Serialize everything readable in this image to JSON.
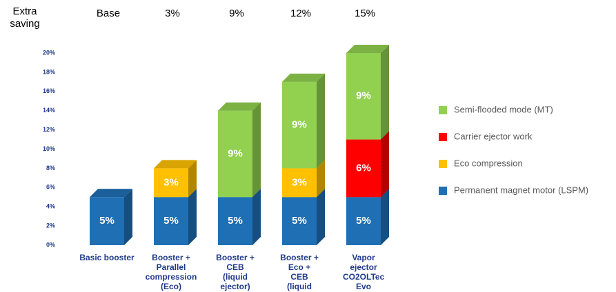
{
  "chart_data": {
    "type": "stacked_bar_3d",
    "header_label": "Extra saving",
    "top_labels": [
      "Base",
      "3%",
      "9%",
      "12%",
      "15%"
    ],
    "categories": [
      "Basic booster",
      "Booster + Parallel compression (Eco)",
      "Booster + CEB (liquid ejector)",
      "Booster + Eco + CEB (liquid ejector)",
      "Vapor ejector CO2OLTec Evo"
    ],
    "series": [
      {
        "name": "Permanent magnet motor (LSPM)",
        "color": "#1f6fb5",
        "values": [
          5,
          5,
          5,
          5,
          5
        ],
        "value_labels": [
          "5%",
          "5%",
          "5%",
          "5%",
          "5%"
        ]
      },
      {
        "name": "Eco compression",
        "color": "#ffc000",
        "values": [
          null,
          3,
          null,
          3,
          null
        ],
        "value_labels": [
          null,
          "3%",
          null,
          "3%",
          null
        ]
      },
      {
        "name": "Carrier ejector work",
        "color": "#ff0000",
        "values": [
          null,
          null,
          null,
          null,
          6
        ],
        "value_labels": [
          null,
          null,
          null,
          null,
          "6%"
        ]
      },
      {
        "name": "Semi-flooded mode (MT)",
        "color": "#92d050",
        "values": [
          null,
          null,
          9,
          9,
          9
        ],
        "value_labels": [
          null,
          null,
          "9%",
          "9%",
          "9%"
        ]
      }
    ],
    "ylim": [
      0,
      20
    ],
    "yticks": [
      {
        "value": 0,
        "label": "0%"
      },
      {
        "value": 2,
        "label": "2%"
      },
      {
        "value": 4,
        "label": "4%"
      },
      {
        "value": 6,
        "label": "6%"
      },
      {
        "value": 8,
        "label": "8%"
      },
      {
        "value": 10,
        "label": "10%"
      },
      {
        "value": 12,
        "label": "12%"
      },
      {
        "value": 14,
        "label": "14%"
      },
      {
        "value": 16,
        "label": "16%"
      },
      {
        "value": 18,
        "label": "18%"
      },
      {
        "value": 20,
        "label": "20%"
      }
    ]
  }
}
